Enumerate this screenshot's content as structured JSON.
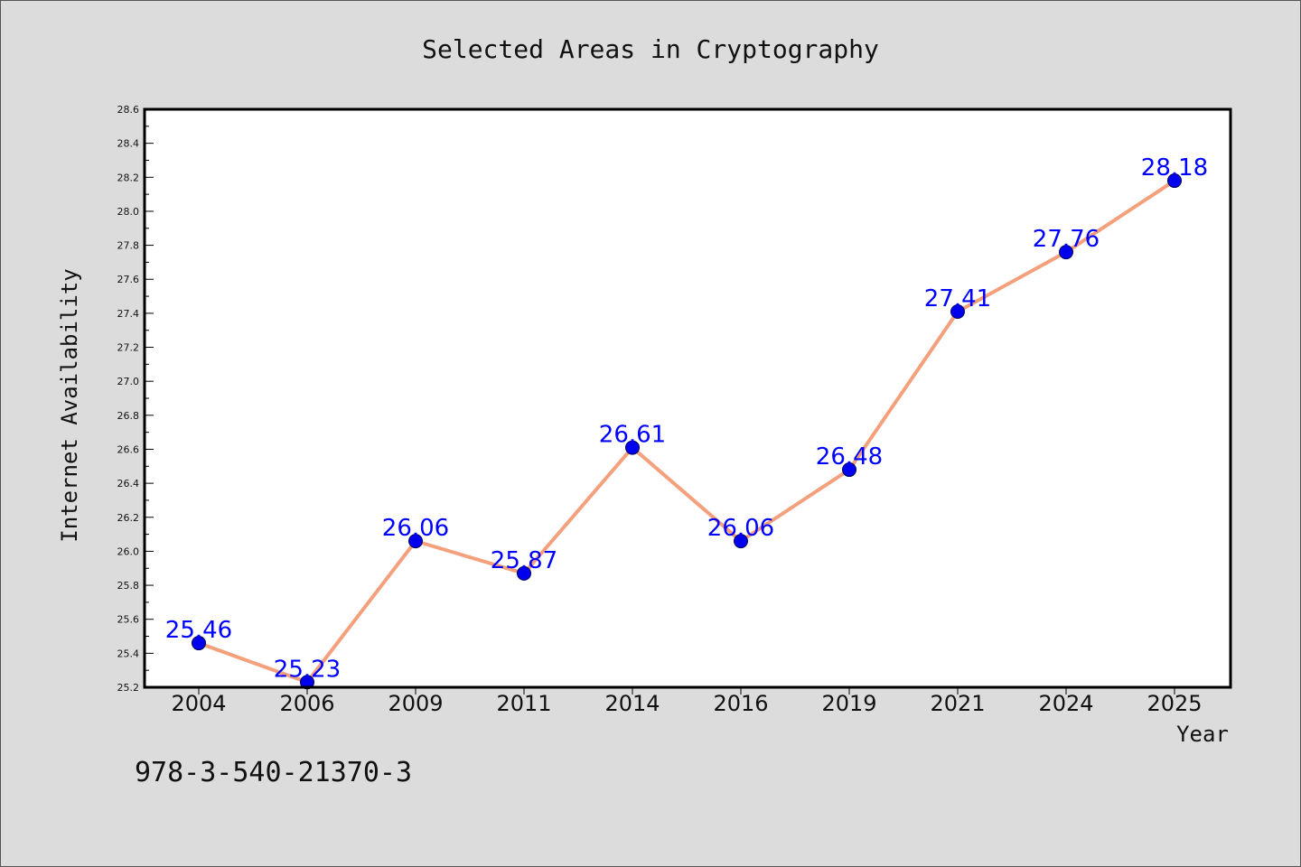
{
  "chart_data": {
    "type": "line",
    "title": "Selected Areas in Cryptography",
    "xlabel": "Year",
    "ylabel": "Internet Availability",
    "categories": [
      "2004",
      "2006",
      "2009",
      "2011",
      "2014",
      "2016",
      "2019",
      "2021",
      "2024",
      "2025"
    ],
    "series": [
      {
        "values": [
          25.46,
          25.23,
          26.06,
          25.87,
          26.61,
          26.06,
          26.48,
          27.41,
          27.76,
          28.18
        ]
      }
    ],
    "data_labels": [
      "25.46",
      "25.23",
      "26.06",
      "25.87",
      "26.61",
      "26.06",
      "26.48",
      "27.41",
      "27.76",
      "28.18"
    ],
    "ylim": [
      25.2,
      28.6
    ],
    "yticks": [
      "25.2",
      "25.4",
      "25.6",
      "25.8",
      "26.0",
      "26.2",
      "26.4",
      "26.6",
      "26.8",
      "27.0",
      "27.2",
      "27.4",
      "27.6",
      "27.8",
      "28.0",
      "28.2",
      "28.4",
      "28.6"
    ],
    "grid": false,
    "colors": {
      "line": "#f4a07c",
      "marker": "#0000ee",
      "label": "#0000ff",
      "background": "#dcdcdc",
      "plot_bg": "#ffffff"
    }
  },
  "footnote": "978-3-540-21370-3"
}
